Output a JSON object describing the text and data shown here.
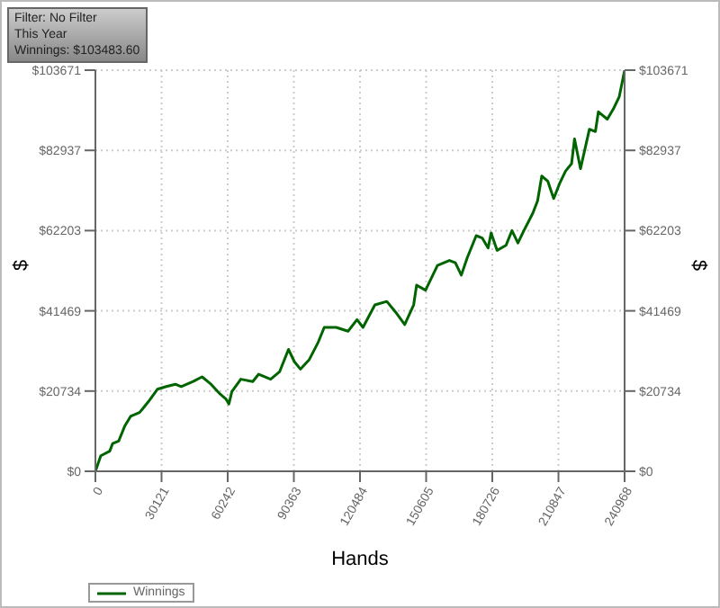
{
  "chart_data": {
    "type": "line",
    "xlabel": "Hands",
    "ylabel": "$",
    "y2label": "$",
    "annotations": [
      "Filter: No Filter",
      "This Year",
      "Winnings: $103483.60"
    ],
    "xlim": [
      0,
      240968
    ],
    "xticks": [
      0,
      30121,
      60242,
      90363,
      120484,
      150605,
      180726,
      210847,
      240968
    ],
    "ylim": [
      0,
      103671
    ],
    "yticks": [
      {
        "value": 0,
        "label": "$0"
      },
      {
        "value": 20734,
        "label": "$20734"
      },
      {
        "value": 41469,
        "label": "$41469"
      },
      {
        "value": 62203,
        "label": "$62203"
      },
      {
        "value": 82937,
        "label": "$82937"
      },
      {
        "value": 103671,
        "label": "$103671"
      }
    ],
    "y2lim": [
      0,
      103671
    ],
    "y2ticks": [
      {
        "value": 0,
        "label": "$0"
      },
      {
        "value": 20734,
        "label": "$20734"
      },
      {
        "value": 41469,
        "label": "$41469"
      },
      {
        "value": 62203,
        "label": "$62203"
      },
      {
        "value": 82937,
        "label": "$82937"
      },
      {
        "value": 103671,
        "label": "$103671"
      }
    ],
    "grid": true,
    "legend": "bottom left",
    "marker": "none",
    "line_style": "solid",
    "series": [
      {
        "name": "Winnings",
        "color": "#006400",
        "x": [
          0,
          2442,
          6513,
          7870,
          10583,
          13297,
          16010,
          20081,
          21437,
          24151,
          28221,
          32292,
          36362,
          39076,
          44503,
          48573,
          52644,
          56714,
          59428,
          60785,
          62141,
          66212,
          71639,
          74352,
          79779,
          83850,
          87921,
          90634,
          93348,
          97418,
          101489,
          104202,
          109629,
          115057,
          119127,
          121841,
          127268,
          132695,
          136765,
          140836,
          144906,
          146263,
          150334,
          153047,
          155761,
          161188,
          163901,
          166615,
          169328,
          173399,
          176112,
          178826,
          180183,
          182896,
          186967,
          189681,
          192394,
          195108,
          199178,
          201349,
          203249,
          205962,
          208676,
          211389,
          214103,
          216816,
          218173,
          220887,
          224957,
          227671,
          229028,
          233098,
          235812,
          238525,
          239882,
          240968
        ],
        "values": [
          0,
          4000,
          5200,
          7200,
          7800,
          11600,
          14200,
          15200,
          16100,
          18000,
          21200,
          21900,
          22500,
          21900,
          23200,
          24400,
          22500,
          20000,
          18700,
          17400,
          20600,
          23800,
          23200,
          25100,
          23800,
          25700,
          31500,
          28300,
          26400,
          28900,
          33400,
          37200,
          37200,
          36200,
          39200,
          37200,
          43000,
          43900,
          41100,
          37900,
          43000,
          48100,
          46800,
          50000,
          53200,
          54500,
          53900,
          50700,
          55200,
          60900,
          60300,
          57700,
          61600,
          57100,
          58400,
          62200,
          59000,
          62200,
          66700,
          69900,
          76300,
          75000,
          70500,
          74400,
          77600,
          79500,
          85900,
          78200,
          88400,
          87800,
          92900,
          91000,
          93600,
          96800,
          100600,
          103600
        ]
      }
    ]
  }
}
